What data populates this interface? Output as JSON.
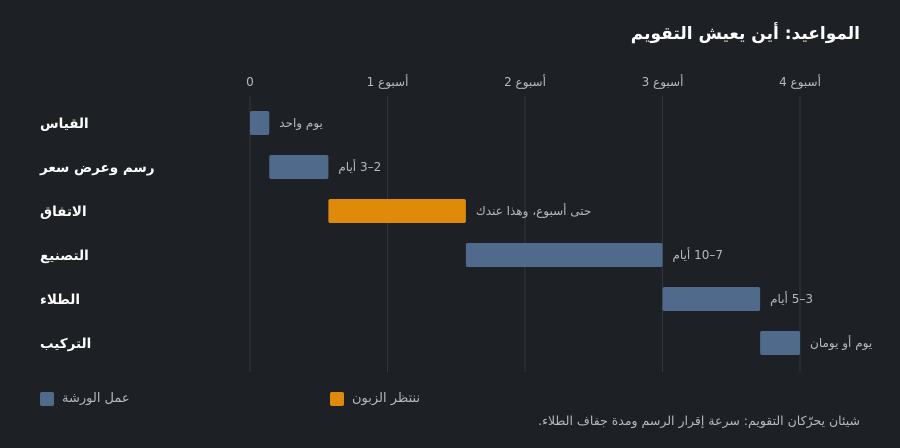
{
  "colors": {
    "background": "#1d2024",
    "workshop": "#4f6a8a",
    "waiting": "#e08a0a",
    "grid": "#33373d",
    "text": "#ffffff",
    "muted": "#b4b9c0"
  },
  "chart_data": {
    "type": "bar",
    "subtype": "gantt",
    "title": "المواعيد: أين يعيش التقويم",
    "footnote": "شيئان يحرّكان التقويم: سرعة إقرار الرسم ومدة جفاف الطلاء.",
    "x_unit": "weeks",
    "xlim": [
      0,
      4.3
    ],
    "x_ticks": [
      {
        "value": 0,
        "label": "0"
      },
      {
        "value": 1,
        "label": "1 أسبوع"
      },
      {
        "value": 2,
        "label": "2 أسبوع"
      },
      {
        "value": 3,
        "label": "3 أسبوع"
      },
      {
        "value": 4,
        "label": "4 أسبوع"
      }
    ],
    "grid": true,
    "legend": {
      "placement": "bottom",
      "items": [
        {
          "key": "workshop",
          "label": "عمل الورشة"
        },
        {
          "key": "waiting",
          "label": "ننتظر الزبون"
        }
      ]
    },
    "tasks": [
      {
        "label": "القياس",
        "start": 0,
        "end": 0.14,
        "series": "workshop",
        "duration_label": "يوم واحد"
      },
      {
        "label": "رسم وعرض سعر",
        "start": 0.14,
        "end": 0.57,
        "series": "workshop",
        "duration_label": "2–3 أيام"
      },
      {
        "label": "الاتفاق",
        "start": 0.57,
        "end": 1.57,
        "series": "waiting",
        "duration_label": "حتى أسبوع، وهذا عندك"
      },
      {
        "label": "التصنيع",
        "start": 1.57,
        "end": 3.0,
        "series": "workshop",
        "duration_label": "7–10 أيام"
      },
      {
        "label": "الطلاء",
        "start": 3.0,
        "end": 3.71,
        "series": "workshop",
        "duration_label": "3–5 أيام"
      },
      {
        "label": "التركيب",
        "start": 3.71,
        "end": 4.0,
        "series": "workshop",
        "duration_label": "يوم أو يومان"
      }
    ]
  }
}
